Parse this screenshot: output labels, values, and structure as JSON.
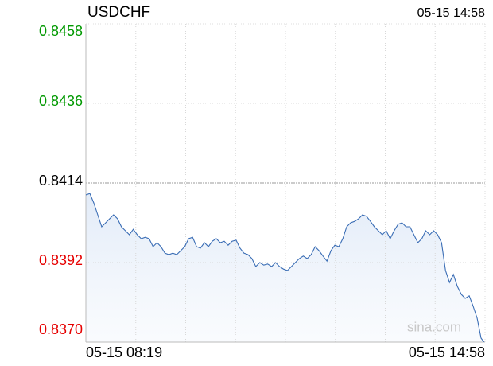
{
  "chart_data": {
    "type": "line",
    "title": "USDCHF",
    "timestamp": "05-15 14:58",
    "x_labels": [
      "05-15 08:19",
      "05-15 14:58"
    ],
    "watermark": "sina.com",
    "color": "#3a6db5",
    "reference": 0.8414,
    "up_color": "#009900",
    "down_color": "#e60000",
    "flat_color": "#000000",
    "ylim": [
      0.837,
      0.8458
    ],
    "yticks": [
      {
        "value": 0.837,
        "label": "0.8370"
      },
      0.8392,
      0.8414,
      0.8436,
      0.8458
    ],
    "grid": true,
    "values": [
      0.84107,
      0.84111,
      0.84085,
      0.84052,
      0.84019,
      0.8403,
      0.84041,
      0.84052,
      0.84041,
      0.84019,
      0.84008,
      0.83997,
      0.84012,
      0.83997,
      0.83986,
      0.8399,
      0.83986,
      0.83964,
      0.83975,
      0.83964,
      0.83946,
      0.83942,
      0.83946,
      0.83942,
      0.83953,
      0.83964,
      0.83986,
      0.8399,
      0.83964,
      0.8396,
      0.83975,
      0.83964,
      0.83979,
      0.83986,
      0.83975,
      0.83979,
      0.83968,
      0.83979,
      0.83982,
      0.8396,
      0.83946,
      0.83942,
      0.83931,
      0.83909,
      0.8392,
      0.83913,
      0.83916,
      0.83909,
      0.8392,
      0.83909,
      0.83902,
      0.83898,
      0.83909,
      0.8392,
      0.83931,
      0.83938,
      0.83931,
      0.83942,
      0.83964,
      0.83953,
      0.83938,
      0.83924,
      0.83953,
      0.83968,
      0.83964,
      0.83986,
      0.84019,
      0.8403,
      0.84034,
      0.84041,
      0.84052,
      0.84048,
      0.84034,
      0.84019,
      0.84008,
      0.83997,
      0.84008,
      0.83986,
      0.84008,
      0.84026,
      0.8403,
      0.84019,
      0.84019,
      0.83997,
      0.83975,
      0.83986,
      0.84008,
      0.83997,
      0.84008,
      0.83997,
      0.83975,
      0.83898,
      0.83865,
      0.83887,
      0.83854,
      0.83832,
      0.83821,
      0.83828,
      0.83799,
      0.83766,
      0.83711,
      0.83696
    ]
  }
}
